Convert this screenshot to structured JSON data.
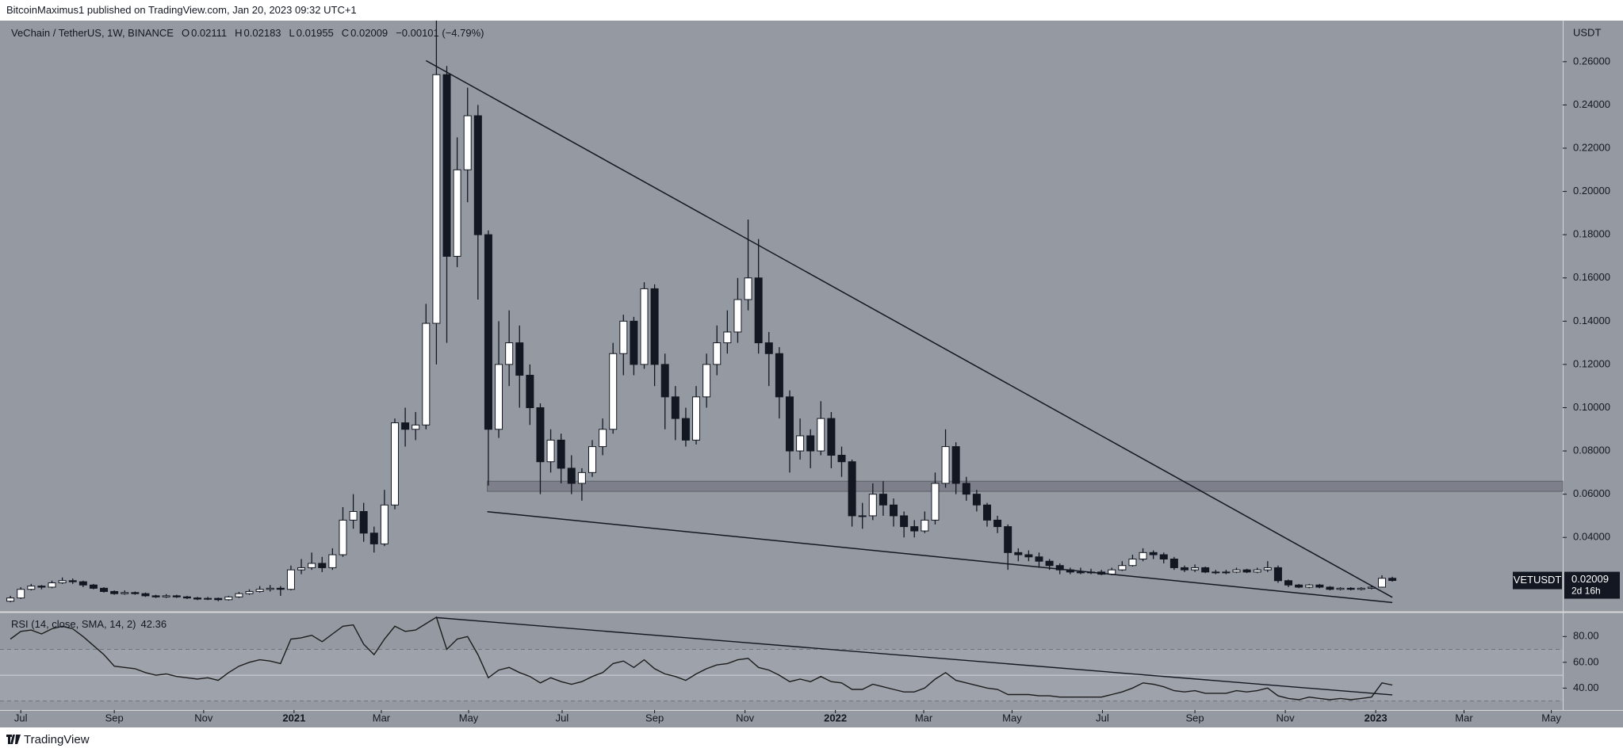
{
  "chart_data": {
    "type": "candlestick",
    "published": "BitcoinMaximus1 published on TradingView.com, Jan 20, 2023 09:32 UTC+1",
    "title": "VeChain / TetherUS, 1W, BINANCE",
    "ohlc_labels": [
      "O",
      "H",
      "L",
      "C"
    ],
    "change_label": "−0.00101 (−4.79%)",
    "symbol": "VETUSDT",
    "countdown": "2d 16h",
    "y_axis_unit": "USDT",
    "footer": "TradingView",
    "up_color": "#ffffff",
    "down_color": "#131722",
    "grid": false,
    "xlim": [
      -2,
      148.4
    ],
    "xticks": [
      {
        "value": 0,
        "label": "Jul"
      },
      {
        "value": 9,
        "label": "Sep"
      },
      {
        "value": 17.6,
        "label": "Nov"
      },
      {
        "value": 26.3,
        "label": "2021"
      },
      {
        "value": 34.7,
        "label": "Mar"
      },
      {
        "value": 43.1,
        "label": "May"
      },
      {
        "value": 52.1,
        "label": "Jul"
      },
      {
        "value": 61,
        "label": "Sep"
      },
      {
        "value": 69.7,
        "label": "Nov"
      },
      {
        "value": 78.4,
        "label": "2022"
      },
      {
        "value": 86.9,
        "label": "Mar"
      },
      {
        "value": 95.4,
        "label": "May"
      },
      {
        "value": 104.1,
        "label": "Jul"
      },
      {
        "value": 113,
        "label": "Sep"
      },
      {
        "value": 121.7,
        "label": "Nov"
      },
      {
        "value": 130.4,
        "label": "2023"
      },
      {
        "value": 138.9,
        "label": "Mar"
      },
      {
        "value": 147.3,
        "label": "May"
      }
    ],
    "ylim": [
      0.006,
      0.279
    ],
    "yticks": [
      {
        "value": 0.04,
        "label": "0.04000"
      },
      {
        "value": 0.06,
        "label": "0.06000"
      },
      {
        "value": 0.08,
        "label": "0.08000"
      },
      {
        "value": 0.1,
        "label": "0.10000"
      },
      {
        "value": 0.12,
        "label": "0.12000"
      },
      {
        "value": 0.14,
        "label": "0.14000"
      },
      {
        "value": 0.16,
        "label": "0.16000"
      },
      {
        "value": 0.18,
        "label": "0.18000"
      },
      {
        "value": 0.2,
        "label": "0.20000"
      },
      {
        "value": 0.22,
        "label": "0.22000"
      },
      {
        "value": 0.24,
        "label": "0.24000"
      },
      {
        "value": 0.26,
        "label": "0.26000"
      }
    ],
    "x": [
      -1,
      0,
      1,
      2,
      3,
      4,
      5,
      6,
      7,
      8,
      9,
      10,
      11,
      12,
      13,
      14,
      15,
      16,
      17,
      18,
      19,
      20,
      21,
      22,
      23,
      24,
      25,
      26,
      27,
      28,
      29,
      30,
      31,
      32,
      33,
      34,
      35,
      36,
      37,
      38,
      39,
      40,
      41,
      42,
      43,
      44,
      45,
      46,
      47,
      48,
      49,
      50,
      51,
      52,
      53,
      54,
      55,
      56,
      57,
      58,
      59,
      60,
      61,
      62,
      63,
      64,
      65,
      66,
      67,
      68,
      69,
      70,
      71,
      72,
      73,
      74,
      75,
      76,
      77,
      78,
      79,
      80,
      81,
      82,
      83,
      84,
      85,
      86,
      87,
      88,
      89,
      90,
      91,
      92,
      93,
      94,
      95,
      96,
      97,
      98,
      99,
      100,
      101,
      102,
      103,
      104,
      105,
      106,
      107,
      108,
      109,
      110,
      111,
      112,
      113,
      114,
      115,
      116,
      117,
      118,
      119,
      120,
      121,
      122,
      123,
      124,
      125,
      126,
      127,
      128,
      129,
      130,
      131,
      132
    ],
    "open": [
      0.0105,
      0.012,
      0.016,
      0.0175,
      0.017,
      0.019,
      0.02,
      0.0195,
      0.018,
      0.0165,
      0.015,
      0.014,
      0.0145,
      0.014,
      0.013,
      0.0125,
      0.013,
      0.0125,
      0.012,
      0.0115,
      0.0118,
      0.0112,
      0.0125,
      0.014,
      0.015,
      0.016,
      0.0165,
      0.016,
      0.025,
      0.026,
      0.028,
      0.026,
      0.032,
      0.048,
      0.052,
      0.042,
      0.037,
      0.055,
      0.093,
      0.09,
      0.092,
      0.139,
      0.254,
      0.17,
      0.21,
      0.235,
      0.18,
      0.09,
      0.12,
      0.13,
      0.115,
      0.1,
      0.075,
      0.085,
      0.072,
      0.065,
      0.07,
      0.082,
      0.09,
      0.125,
      0.14,
      0.12,
      0.155,
      0.12,
      0.105,
      0.095,
      0.085,
      0.105,
      0.12,
      0.13,
      0.135,
      0.15,
      0.16,
      0.13,
      0.125,
      0.105,
      0.08,
      0.087,
      0.08,
      0.095,
      0.078,
      0.075,
      0.05,
      0.05,
      0.06,
      0.055,
      0.05,
      0.045,
      0.043,
      0.048,
      0.065,
      0.082,
      0.065,
      0.06,
      0.055,
      0.048,
      0.045,
      0.033,
      0.032,
      0.031,
      0.029,
      0.027,
      0.025,
      0.024,
      0.024,
      0.024,
      0.023,
      0.025,
      0.027,
      0.03,
      0.033,
      0.032,
      0.03,
      0.026,
      0.025,
      0.026,
      0.024,
      0.024,
      0.024,
      0.025,
      0.024,
      0.025,
      0.026,
      0.02,
      0.018,
      0.017,
      0.018,
      0.017,
      0.016,
      0.0165,
      0.016,
      0.0165,
      0.017,
      0.02111
    ],
    "high": [
      0.013,
      0.017,
      0.0185,
      0.018,
      0.02,
      0.0215,
      0.021,
      0.02,
      0.0185,
      0.017,
      0.0155,
      0.0155,
      0.015,
      0.0145,
      0.0135,
      0.0138,
      0.0135,
      0.013,
      0.0125,
      0.0125,
      0.0122,
      0.013,
      0.0148,
      0.016,
      0.0175,
      0.018,
      0.0175,
      0.027,
      0.03,
      0.033,
      0.031,
      0.035,
      0.054,
      0.06,
      0.056,
      0.045,
      0.062,
      0.095,
      0.1,
      0.098,
      0.148,
      0.279,
      0.258,
      0.225,
      0.248,
      0.24,
      0.182,
      0.14,
      0.145,
      0.138,
      0.12,
      0.102,
      0.09,
      0.088,
      0.078,
      0.072,
      0.085,
      0.095,
      0.13,
      0.143,
      0.142,
      0.158,
      0.157,
      0.125,
      0.11,
      0.1,
      0.11,
      0.125,
      0.138,
      0.145,
      0.16,
      0.187,
      0.178,
      0.135,
      0.128,
      0.108,
      0.095,
      0.09,
      0.103,
      0.098,
      0.082,
      0.076,
      0.056,
      0.065,
      0.066,
      0.058,
      0.052,
      0.048,
      0.052,
      0.07,
      0.09,
      0.084,
      0.068,
      0.062,
      0.056,
      0.05,
      0.046,
      0.035,
      0.034,
      0.033,
      0.03,
      0.028,
      0.026,
      0.026,
      0.0255,
      0.025,
      0.026,
      0.029,
      0.032,
      0.035,
      0.034,
      0.033,
      0.031,
      0.027,
      0.0275,
      0.0265,
      0.025,
      0.025,
      0.026,
      0.0255,
      0.026,
      0.029,
      0.027,
      0.0205,
      0.0185,
      0.0185,
      0.0185,
      0.0175,
      0.017,
      0.017,
      0.017,
      0.0175,
      0.0225,
      0.02183
    ],
    "low": [
      0.01,
      0.0115,
      0.0155,
      0.016,
      0.0165,
      0.0185,
      0.0185,
      0.017,
      0.016,
      0.0145,
      0.0135,
      0.0135,
      0.0135,
      0.0125,
      0.012,
      0.012,
      0.012,
      0.0115,
      0.011,
      0.011,
      0.0105,
      0.0108,
      0.012,
      0.0135,
      0.0145,
      0.015,
      0.013,
      0.0155,
      0.023,
      0.025,
      0.024,
      0.025,
      0.031,
      0.044,
      0.038,
      0.033,
      0.036,
      0.053,
      0.082,
      0.085,
      0.09,
      0.12,
      0.13,
      0.165,
      0.195,
      0.15,
      0.064,
      0.086,
      0.11,
      0.1,
      0.092,
      0.06,
      0.07,
      0.065,
      0.06,
      0.057,
      0.068,
      0.078,
      0.088,
      0.115,
      0.115,
      0.118,
      0.11,
      0.09,
      0.085,
      0.082,
      0.083,
      0.1,
      0.115,
      0.125,
      0.13,
      0.145,
      0.125,
      0.11,
      0.095,
      0.07,
      0.076,
      0.072,
      0.078,
      0.072,
      0.068,
      0.045,
      0.044,
      0.048,
      0.05,
      0.045,
      0.04,
      0.04,
      0.042,
      0.046,
      0.063,
      0.06,
      0.057,
      0.052,
      0.045,
      0.042,
      0.025,
      0.029,
      0.029,
      0.026,
      0.025,
      0.023,
      0.023,
      0.023,
      0.023,
      0.0225,
      0.0225,
      0.0245,
      0.0265,
      0.029,
      0.03,
      0.028,
      0.025,
      0.024,
      0.024,
      0.0235,
      0.023,
      0.023,
      0.0235,
      0.0235,
      0.0235,
      0.024,
      0.019,
      0.017,
      0.0165,
      0.0165,
      0.0165,
      0.0155,
      0.0155,
      0.0155,
      0.0155,
      0.016,
      0.0168,
      0.01955
    ],
    "close": [
      0.012,
      0.016,
      0.0175,
      0.017,
      0.019,
      0.02,
      0.0195,
      0.018,
      0.0165,
      0.015,
      0.014,
      0.0145,
      0.014,
      0.013,
      0.0125,
      0.013,
      0.0125,
      0.012,
      0.0115,
      0.0118,
      0.0112,
      0.0125,
      0.014,
      0.015,
      0.016,
      0.0165,
      0.016,
      0.025,
      0.026,
      0.028,
      0.026,
      0.032,
      0.048,
      0.052,
      0.042,
      0.037,
      0.055,
      0.093,
      0.09,
      0.092,
      0.139,
      0.254,
      0.17,
      0.21,
      0.235,
      0.18,
      0.09,
      0.12,
      0.13,
      0.115,
      0.1,
      0.075,
      0.085,
      0.072,
      0.065,
      0.07,
      0.082,
      0.09,
      0.125,
      0.14,
      0.12,
      0.155,
      0.12,
      0.105,
      0.095,
      0.085,
      0.105,
      0.12,
      0.13,
      0.135,
      0.15,
      0.16,
      0.13,
      0.125,
      0.105,
      0.08,
      0.087,
      0.08,
      0.095,
      0.078,
      0.075,
      0.05,
      0.05,
      0.06,
      0.055,
      0.05,
      0.045,
      0.043,
      0.048,
      0.065,
      0.082,
      0.065,
      0.06,
      0.055,
      0.048,
      0.045,
      0.033,
      0.032,
      0.031,
      0.029,
      0.027,
      0.025,
      0.024,
      0.024,
      0.024,
      0.023,
      0.025,
      0.027,
      0.03,
      0.033,
      0.032,
      0.03,
      0.026,
      0.025,
      0.026,
      0.024,
      0.024,
      0.024,
      0.025,
      0.024,
      0.025,
      0.026,
      0.02,
      0.018,
      0.017,
      0.018,
      0.017,
      0.016,
      0.0165,
      0.016,
      0.0165,
      0.017,
      0.02111,
      0.02009
    ],
    "trend_lines": [
      {
        "x": [
          39,
          132
        ],
        "y": [
          0.2605,
          0.0123
        ]
      },
      {
        "x": [
          44.9,
          132
        ],
        "y": [
          0.0519,
          0.0099
        ]
      }
    ],
    "zone": {
      "x": [
        44.9,
        148.4
      ],
      "y": [
        0.0613,
        0.066
      ]
    },
    "rsi": {
      "title": "RSI (14, close, SMA, 14, 2)",
      "color": "#1c1c1c",
      "ylim": [
        23,
        98
      ],
      "yticks": [
        {
          "value": 40,
          "label": "40.00"
        },
        {
          "value": 60,
          "label": "60.00"
        },
        {
          "value": 80,
          "label": "80.00"
        }
      ],
      "levels": [
        70,
        50,
        30
      ],
      "values": [
        78,
        84,
        85,
        82,
        86,
        88,
        86,
        80,
        73,
        66,
        57,
        56,
        55,
        52,
        50,
        51,
        49,
        48,
        47,
        48,
        46,
        52,
        57,
        60,
        62,
        61,
        59,
        78,
        79,
        81,
        76,
        82,
        88,
        89,
        74,
        66,
        78,
        88,
        84,
        85,
        90,
        95,
        70,
        78,
        80,
        66,
        48,
        54,
        56,
        52,
        49,
        44,
        48,
        45,
        43,
        45,
        49,
        52,
        59,
        61,
        56,
        62,
        55,
        51,
        49,
        46,
        51,
        55,
        58,
        59,
        62,
        63,
        56,
        54,
        50,
        45,
        47,
        45,
        49,
        45,
        44,
        39,
        39,
        43,
        41,
        39,
        37,
        37,
        40,
        47,
        52,
        46,
        44,
        42,
        40,
        39,
        35,
        35,
        35,
        34,
        34,
        33,
        33,
        33,
        33,
        33,
        35,
        37,
        40,
        44,
        43,
        41,
        38,
        37,
        38,
        36,
        36,
        36,
        38,
        37,
        38,
        40,
        34,
        32,
        31,
        33,
        32,
        31,
        32,
        31,
        32,
        33,
        44,
        42.36
      ],
      "trend_line": {
        "x": [
          40,
          132
        ],
        "y": [
          94.7,
          34.7
        ]
      }
    }
  }
}
